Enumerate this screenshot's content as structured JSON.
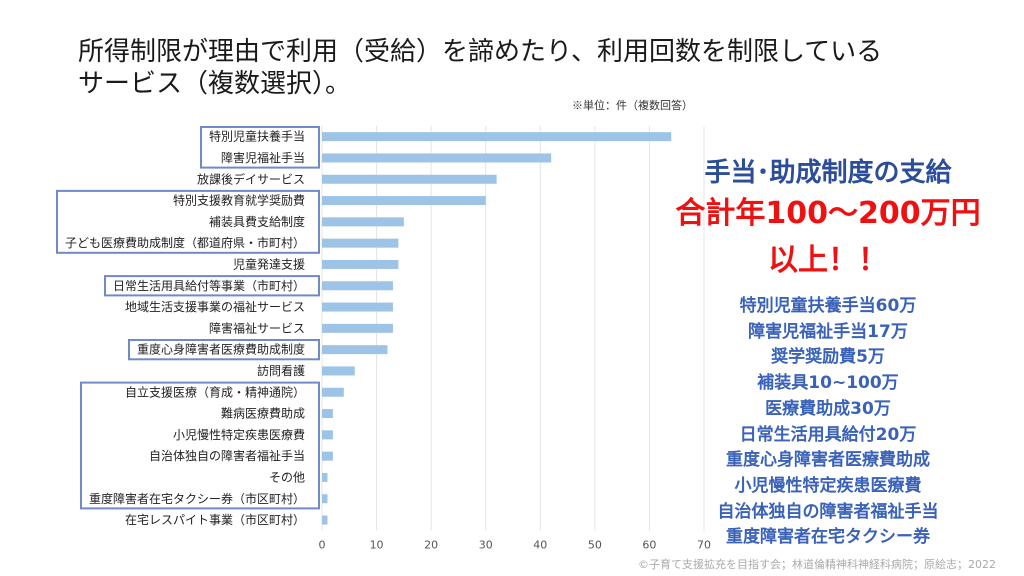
{
  "title_lines": [
    "所得制限が理由で利用（受給）を諦めたり、利用回数を制限している",
    "サービス（複数選択）。"
  ],
  "unit_note": "※単位：件（複数回答）",
  "chart_data": {
    "type": "bar",
    "orientation": "horizontal",
    "categories": [
      "特別児童扶養手当",
      "障害児福祉手当",
      "放課後デイサービス",
      "特別支援教育就学奨励費",
      "補装具費支給制度",
      "子ども医療費助成制度（都道府県・市町村）",
      "児童発達支援",
      "日常生活用具給付等事業（市町村）",
      "地域生活支援事業の福祉サービス",
      "障害福祉サービス",
      "重度心身障害者医療費助成制度",
      "訪問看護",
      "自立支援医療（育成・精神通院）",
      "難病医療費助成",
      "小児慢性特定疾患医療費",
      "自治体独自の障害者福祉手当",
      "その他",
      "重度障害者在宅タクシー券（市区町村）",
      "在宅レスパイト事業（市区町村）"
    ],
    "values": [
      64,
      42,
      32,
      30,
      15,
      14,
      14,
      13,
      13,
      13,
      12,
      6,
      4,
      2,
      2,
      2,
      1,
      1,
      1
    ],
    "xlim": [
      0,
      70
    ],
    "x_ticks": [
      "0",
      "10",
      "20",
      "30",
      "40",
      "50",
      "60",
      "70"
    ],
    "grid": true,
    "bar_color": "#9dc3e6",
    "highlight_color": "#7189c4",
    "highlight_groups": [
      [
        0,
        1
      ],
      [
        3,
        5
      ],
      [
        7,
        7
      ],
      [
        10,
        10
      ],
      [
        12,
        17
      ]
    ]
  },
  "callout": {
    "heading": "手当･助成制度の支給",
    "amount": "合計年100～200万円",
    "emphasis": "以上！！",
    "items": [
      "特別児童扶養手当60万",
      "障害児福祉手当17万",
      "奨学奨励費5万",
      "補装具10~100万",
      "医療費助成30万",
      "日常生活用具給付20万",
      "重度心身障害者医療費助成",
      "小児慢性特定疾患医療費",
      "自治体独自の障害者福祉手当",
      "重度障害者在宅タクシー券"
    ]
  },
  "footer": "©子育て支援拡充を目指す会；林道倫精神科神経科病院；原絵志；2022"
}
